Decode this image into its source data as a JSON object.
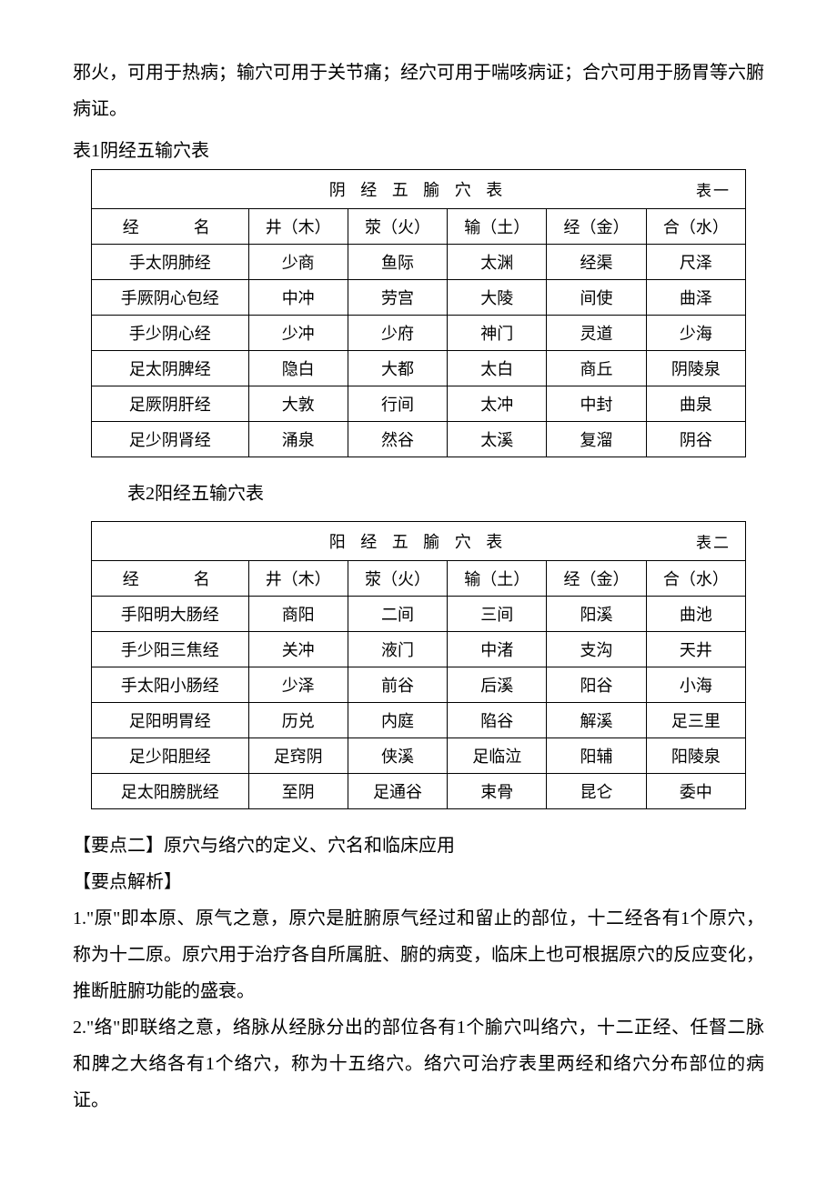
{
  "intro": "邪火，可用于热病；输穴可用于关节痛；经穴可用于喘咳病证；合穴可用于肠胃等六腑病证。",
  "table1": {
    "label": "表1阴经五输穴表",
    "title": "阴 经 五 腧 穴 表",
    "tag": "表一",
    "headers": [
      "经　　名",
      "井（木）",
      "荥（火）",
      "输（土）",
      "经（金）",
      "合（水）"
    ],
    "rows": [
      [
        "手太阴肺经",
        "少商",
        "鱼际",
        "太渊",
        "经渠",
        "尺泽"
      ],
      [
        "手厥阴心包经",
        "中冲",
        "劳宫",
        "大陵",
        "间使",
        "曲泽"
      ],
      [
        "手少阴心经",
        "少冲",
        "少府",
        "神门",
        "灵道",
        "少海"
      ],
      [
        "足太阴脾经",
        "隐白",
        "大都",
        "太白",
        "商丘",
        "阴陵泉"
      ],
      [
        "足厥阴肝经",
        "大敦",
        "行间",
        "太冲",
        "中封",
        "曲泉"
      ],
      [
        "足少阴肾经",
        "涌泉",
        "然谷",
        "太溪",
        "复溜",
        "阴谷"
      ]
    ]
  },
  "table2": {
    "label": "表2阳经五输穴表",
    "title": "阳 经 五 腧 穴 表",
    "tag": "表二",
    "headers": [
      "经　　名",
      "井（木）",
      "荥（火）",
      "输（土）",
      "经（金）",
      "合（水）"
    ],
    "rows": [
      [
        "手阳明大肠经",
        "商阳",
        "二间",
        "三间",
        "阳溪",
        "曲池"
      ],
      [
        "手少阳三焦经",
        "关冲",
        "液门",
        "中渚",
        "支沟",
        "天井"
      ],
      [
        "手太阳小肠经",
        "少泽",
        "前谷",
        "后溪",
        "阳谷",
        "小海"
      ],
      [
        "足阳明胃经",
        "历兑",
        "内庭",
        "陷谷",
        "解溪",
        "足三里"
      ],
      [
        "足少阳胆经",
        "足窍阴",
        "侠溪",
        "足临泣",
        "阳辅",
        "阳陵泉"
      ],
      [
        "足太阳膀胱经",
        "至阴",
        "足通谷",
        "束骨",
        "昆仑",
        "委中"
      ]
    ]
  },
  "point2": {
    "title": "【要点二】原穴与络穴的定义、穴名和临床应用",
    "subtitle": "【要点解析】",
    "p1": "1.\"原\"即本原、原气之意，原穴是脏腑原气经过和留止的部位，十二经各有1个原穴，称为十二原。原穴用于治疗各自所属脏、腑的病变，临床上也可根据原穴的反应变化，推断脏腑功能的盛衰。",
    "p2": "2.\"络\"即联络之意，络脉从经脉分出的部位各有1个腧穴叫络穴，十二正经、任督二脉和脾之大络各有1个络穴，称为十五络穴。络穴可治疗表里两经和络穴分布部位的病证。"
  }
}
